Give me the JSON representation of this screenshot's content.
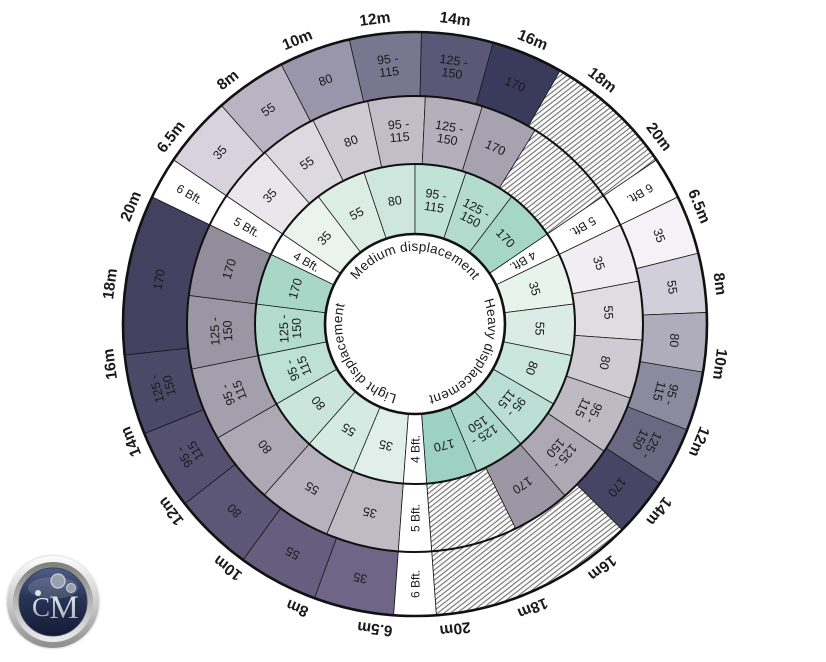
{
  "wheel": {
    "boat_length_labels": [
      "6.5m",
      "8m",
      "10m",
      "12m",
      "14m",
      "16m",
      "18m",
      "20m"
    ],
    "wind_rings": [
      "4 Bft.",
      "5 Bft.",
      "6 Bft."
    ],
    "unit_values": [
      "35",
      "55",
      "80",
      "95 -|115",
      "125 -|150",
      "170"
    ],
    "sectors": [
      {
        "id": "medium",
        "label": "Medium displacement",
        "start_angle": 300,
        "rings": [
          {
            "wind": "4 Bft.",
            "values": [
              "35",
              "55",
              "80",
              "95 -|115",
              "125 -|150",
              "170"
            ],
            "widths": [
              1,
              1,
              1,
              1,
              1,
              1
            ],
            "hatch_deg": 0,
            "color_start": "#eaf3ee",
            "color_end": "#a5d6c6"
          },
          {
            "wind": "5 Bft.",
            "values": [
              "35",
              "55",
              "80",
              "95 -|115",
              "125 -|150",
              "170"
            ],
            "widths": [
              1,
              1,
              1,
              1,
              1,
              1
            ],
            "hatch_deg": 24,
            "color_start": "#eae7ec",
            "color_end": "#a7a2af"
          },
          {
            "wind": "6 Bft.",
            "values": [
              "35",
              "55",
              "80",
              "95 -|115",
              "125 -|150",
              "170"
            ],
            "widths": [
              1,
              1,
              1,
              1,
              1,
              1
            ],
            "hatch_deg": 26,
            "color_start": "#d8d2de",
            "color_end": "#3a3a5c"
          }
        ]
      },
      {
        "id": "heavy",
        "label": "Heavy displacement",
        "start_angle": 60,
        "rings": [
          {
            "wind": "4 Bft.",
            "values": [
              "35",
              "55",
              "80",
              "95 -|115",
              "125 -|150",
              "170"
            ],
            "widths": [
              1,
              1,
              1,
              1,
              1,
              1
            ],
            "hatch_deg": 0,
            "color_start": "#e9f3ee",
            "color_end": "#9dd2c2"
          },
          {
            "wind": "5 Bft.",
            "values": [
              "35",
              "55",
              "80",
              "95 -|115",
              "125 -|150",
              "170"
            ],
            "widths": [
              1,
              1,
              1,
              1,
              1,
              1
            ],
            "hatch_deg": 22,
            "color_start": "#f0eef2",
            "color_end": "#9c97a4"
          },
          {
            "wind": "6 Bft.",
            "values": [
              "35",
              "55",
              "80",
              "95 -|115",
              "125 -|150",
              "170"
            ],
            "widths": [
              1,
              1,
              1,
              1,
              1,
              1
            ],
            "hatch_deg": 41,
            "color_start": "#f4f2f6",
            "color_end": "#474565"
          }
        ]
      },
      {
        "id": "light",
        "label": "Light displacement",
        "start_angle": 180,
        "rings": [
          {
            "wind": "4 Bft.",
            "values": [
              "35",
              "55",
              "80",
              "95 -|115",
              "125 -|150",
              "170"
            ],
            "widths": [
              1,
              1,
              1,
              1,
              1,
              1
            ],
            "hatch_deg": 0,
            "color_start": "#e0efe9",
            "color_end": "#a8d7c7"
          },
          {
            "wind": "5 Bft.",
            "values": [
              "35",
              "55",
              "80",
              "95 -|115",
              "125 -|150",
              "170"
            ],
            "widths": [
              1,
              1,
              1,
              1,
              1,
              1
            ],
            "hatch_deg": 0,
            "color_start": "#c0bac5",
            "color_end": "#918d9b"
          },
          {
            "wind": "6 Bft.",
            "values": [
              "35",
              "55",
              "80",
              "95 -|115",
              "125 -|150",
              "170"
            ],
            "widths": [
              1,
              1,
              1,
              1,
              1,
              2
            ],
            "hatch_deg": 0,
            "color_start": "#6f6687",
            "color_end": "#434060"
          }
        ]
      }
    ]
  },
  "logo": {
    "letter_c": "C",
    "letter_m": "M"
  },
  "chart_data": {
    "type": "table",
    "boat_lengths": [
      "6.5m",
      "8m",
      "10m",
      "12m",
      "14m",
      "16m",
      "18m",
      "20m"
    ],
    "unit_sizes": [
      "35",
      "55",
      "80",
      "95-115",
      "125-150",
      "170"
    ],
    "rings_inner_to_outer": [
      "4 Bft.",
      "5 Bft.",
      "6 Bft."
    ],
    "segments": [
      {
        "displacement": "Medium displacement",
        "wind": "4 Bft.",
        "cells": [
          "35",
          "55",
          "80",
          "95-115",
          "125-150",
          "170"
        ],
        "hatched_tail": false
      },
      {
        "displacement": "Medium displacement",
        "wind": "5 Bft.",
        "cells": [
          "35",
          "55",
          "80",
          "95-115",
          "125-150",
          "170"
        ],
        "hatched_tail": true
      },
      {
        "displacement": "Medium displacement",
        "wind": "6 Bft.",
        "cells": [
          "35",
          "55",
          "80",
          "95-115",
          "125-150",
          "170"
        ],
        "hatched_tail": true
      },
      {
        "displacement": "Heavy displacement",
        "wind": "4 Bft.",
        "cells": [
          "35",
          "55",
          "80",
          "95-115",
          "125-150",
          "170"
        ],
        "hatched_tail": false
      },
      {
        "displacement": "Heavy displacement",
        "wind": "5 Bft.",
        "cells": [
          "35",
          "55",
          "80",
          "95-115",
          "125-150",
          "170"
        ],
        "hatched_tail": true
      },
      {
        "displacement": "Heavy displacement",
        "wind": "6 Bft.",
        "cells": [
          "35",
          "55",
          "80",
          "95-115",
          "125-150",
          "170"
        ],
        "hatched_tail": true
      },
      {
        "displacement": "Light displacement",
        "wind": "4 Bft.",
        "cells": [
          "35",
          "55",
          "80",
          "95-115",
          "125-150",
          "170"
        ],
        "hatched_tail": false
      },
      {
        "displacement": "Light displacement",
        "wind": "5 Bft.",
        "cells": [
          "35",
          "55",
          "80",
          "95-115",
          "125-150",
          "170"
        ],
        "hatched_tail": false
      },
      {
        "displacement": "Light displacement",
        "wind": "6 Bft.",
        "cells": [
          "35",
          "55",
          "80",
          "95-115",
          "125-150",
          "170"
        ],
        "hatched_tail": false
      }
    ]
  }
}
